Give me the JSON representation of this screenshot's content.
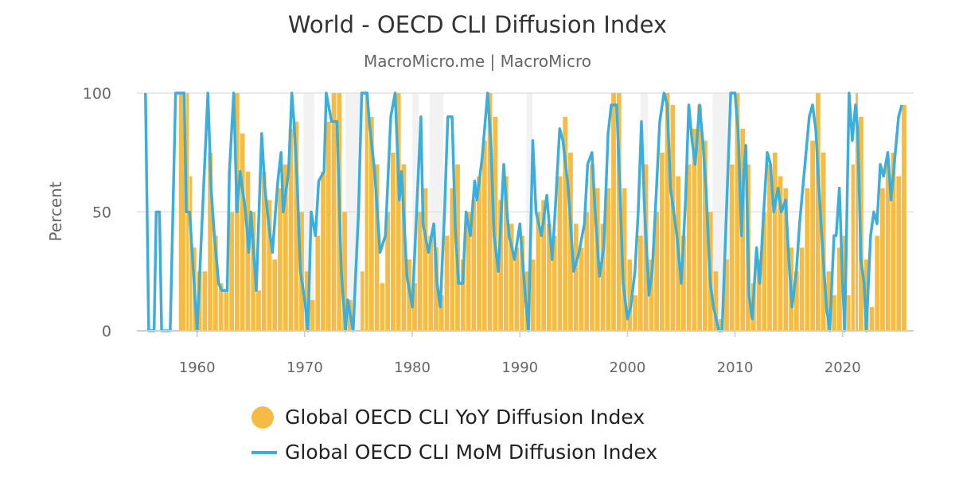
{
  "chart_data": {
    "type": "bar+line",
    "title": "World - OECD CLI Diffusion Index",
    "subtitle": "MacroMicro.me | MacroMicro",
    "ylabel": "Percent",
    "xlabel": "",
    "ylim": [
      0,
      100
    ],
    "xlim": [
      1954.4,
      2026.6
    ],
    "yticks": [
      "0",
      "50",
      "100"
    ],
    "xticks": [
      "1960",
      "1970",
      "1980",
      "1990",
      "2000",
      "2010",
      "2020"
    ],
    "grid": true,
    "legend_placement": "bottom",
    "colors": {
      "yoy": "#f6bb42",
      "mom": "#3caedb",
      "shade": "#f2f2f2"
    },
    "shaded_periods": [
      [
        1969.9,
        1970.9
      ],
      [
        1973.8,
        1975.2
      ],
      [
        1980.0,
        1980.6
      ],
      [
        1981.6,
        1982.9
      ],
      [
        1990.6,
        1991.2
      ],
      [
        2001.2,
        2001.9
      ],
      [
        2007.9,
        2009.5
      ]
    ],
    "series": [
      {
        "name": "Global OECD CLI YoY Diffusion Index",
        "type": "bar",
        "x": [
          1958.3,
          1959.0,
          1959.3,
          1959.6,
          1960.0,
          1960.5,
          1961.0,
          1961.5,
          1962.0,
          1962.5,
          1963.0,
          1963.5,
          1964.0,
          1964.5,
          1965.0,
          1965.5,
          1966.0,
          1966.5,
          1967.0,
          1967.5,
          1968.0,
          1968.5,
          1969.0,
          1969.5,
          1970.0,
          1970.5,
          1971.0,
          1971.5,
          1972.0,
          1972.5,
          1973.0,
          1973.5,
          1974.0,
          1974.5,
          1975.2,
          1975.6,
          1976.0,
          1976.5,
          1977.0,
          1977.5,
          1978.0,
          1978.5,
          1979.0,
          1979.5,
          1980.0,
          1980.5,
          1981.0,
          1981.5,
          1982.0,
          1982.5,
          1983.0,
          1983.5,
          1984.0,
          1984.5,
          1985.0,
          1985.5,
          1986.0,
          1986.5,
          1987.0,
          1987.5,
          1988.0,
          1988.5,
          1989.0,
          1989.5,
          1990.0,
          1990.5,
          1991.0,
          1991.5,
          1992.0,
          1992.5,
          1993.0,
          1993.5,
          1994.0,
          1994.5,
          1995.0,
          1995.5,
          1996.0,
          1996.5,
          1997.0,
          1997.5,
          1998.0,
          1998.5,
          1999.0,
          1999.5,
          2000.0,
          2000.5,
          2001.0,
          2001.5,
          2002.0,
          2002.5,
          2003.0,
          2003.5,
          2004.0,
          2004.5,
          2005.0,
          2005.5,
          2006.0,
          2006.5,
          2007.0,
          2007.5,
          2008.0,
          2008.5,
          2009.0,
          2009.5,
          2010.0,
          2010.5,
          2011.0,
          2011.5,
          2012.0,
          2012.5,
          2013.0,
          2013.5,
          2014.0,
          2014.5,
          2015.0,
          2015.5,
          2016.0,
          2016.5,
          2017.0,
          2017.5,
          2018.0,
          2018.5,
          2019.0,
          2019.5,
          2020.0,
          2020.4,
          2020.8,
          2021.2,
          2021.5,
          2022.0,
          2022.5,
          2023.0,
          2023.5,
          2024.0,
          2024.5,
          2025.0,
          2025.5
        ],
        "values": [
          100,
          100,
          65,
          35,
          25,
          25,
          75,
          40,
          20,
          17,
          50,
          100,
          83,
          67,
          50,
          17,
          67,
          55,
          30,
          60,
          70,
          85,
          88,
          50,
          25,
          13,
          40,
          67,
          88,
          100,
          100,
          50,
          13,
          0,
          25,
          100,
          90,
          70,
          20,
          50,
          75,
          100,
          70,
          30,
          20,
          50,
          60,
          40,
          35,
          15,
          40,
          60,
          70,
          30,
          50,
          55,
          65,
          80,
          100,
          90,
          55,
          65,
          45,
          35,
          40,
          25,
          30,
          50,
          55,
          45,
          40,
          65,
          90,
          75,
          45,
          35,
          50,
          70,
          60,
          45,
          60,
          100,
          100,
          60,
          30,
          15,
          40,
          70,
          30,
          50,
          75,
          100,
          95,
          65,
          40,
          70,
          85,
          95,
          80,
          50,
          25,
          5,
          30,
          70,
          100,
          85,
          70,
          20,
          30,
          50,
          70,
          75,
          65,
          60,
          35,
          25,
          35,
          60,
          80,
          100,
          75,
          25,
          15,
          35,
          40,
          15,
          70,
          100,
          90,
          30,
          10,
          40,
          60,
          70,
          75,
          65,
          95
        ]
      },
      {
        "name": "Global OECD CLI MoM Diffusion Index",
        "type": "line",
        "x": [
          1955.2,
          1955.5,
          1956.0,
          1956.2,
          1956.5,
          1956.7,
          1957.5,
          1958.0,
          1958.8,
          1959.0,
          1959.3,
          1960.0,
          1960.5,
          1961.0,
          1961.3,
          1961.6,
          1962.0,
          1962.3,
          1962.8,
          1963.0,
          1963.4,
          1963.7,
          1964.0,
          1964.5,
          1964.8,
          1965.0,
          1965.5,
          1966.0,
          1966.3,
          1966.7,
          1967.0,
          1967.5,
          1967.8,
          1968.0,
          1968.5,
          1968.8,
          1969.0,
          1969.3,
          1969.6,
          1970.0,
          1970.3,
          1970.6,
          1971.0,
          1971.3,
          1971.8,
          1972.0,
          1972.5,
          1973.0,
          1973.4,
          1973.8,
          1974.0,
          1974.5,
          1975.0,
          1975.3,
          1975.8,
          1976.0,
          1976.5,
          1977.0,
          1977.5,
          1978.0,
          1978.4,
          1978.8,
          1979.0,
          1979.5,
          1980.0,
          1980.4,
          1980.8,
          1981.0,
          1981.5,
          1982.0,
          1982.3,
          1982.6,
          1983.0,
          1983.3,
          1983.7,
          1984.0,
          1984.3,
          1984.7,
          1985.0,
          1985.4,
          1985.8,
          1986.0,
          1986.5,
          1987.0,
          1987.3,
          1987.6,
          1988.0,
          1988.5,
          1988.8,
          1989.0,
          1989.5,
          1990.0,
          1990.5,
          1990.8,
          1991.2,
          1991.5,
          1992.0,
          1992.5,
          1993.0,
          1993.3,
          1993.7,
          1994.0,
          1994.5,
          1995.0,
          1995.5,
          1996.0,
          1996.3,
          1996.7,
          1997.0,
          1997.4,
          1997.8,
          1998.2,
          1998.5,
          1999.0,
          1999.3,
          1999.6,
          2000.0,
          2000.3,
          2000.7,
          2001.0,
          2001.3,
          2001.6,
          2002.0,
          2002.3,
          2002.7,
          2003.0,
          2003.4,
          2003.7,
          2004.0,
          2004.3,
          2004.6,
          2005.0,
          2005.4,
          2005.7,
          2006.0,
          2006.3,
          2006.7,
          2007.0,
          2007.3,
          2007.7,
          2008.0,
          2008.5,
          2008.8,
          2009.2,
          2009.6,
          2010.0,
          2010.3,
          2010.6,
          2010.8,
          2011.0,
          2011.3,
          2011.6,
          2012.0,
          2012.3,
          2012.6,
          2013.0,
          2013.3,
          2013.6,
          2014.0,
          2014.3,
          2014.7,
          2015.0,
          2015.3,
          2015.7,
          2016.0,
          2016.5,
          2016.9,
          2017.2,
          2017.5,
          2017.8,
          2018.2,
          2018.5,
          2018.8,
          2019.2,
          2019.4,
          2019.7,
          2020.0,
          2020.2,
          2020.6,
          2020.9,
          2021.2,
          2021.4,
          2021.7,
          2022.0,
          2022.2,
          2022.6,
          2022.9,
          2023.2,
          2023.5,
          2023.8,
          2024.2,
          2024.5,
          2024.8,
          2025.2,
          2025.5
        ],
        "values": [
          100,
          0,
          0,
          50,
          50,
          0,
          0,
          100,
          100,
          50,
          50,
          0,
          50,
          100,
          60,
          40,
          20,
          17,
          17,
          67,
          100,
          50,
          67,
          50,
          33,
          50,
          17,
          83,
          60,
          43,
          33,
          63,
          75,
          50,
          67,
          100,
          88,
          63,
          25,
          13,
          0,
          50,
          40,
          63,
          67,
          100,
          88,
          88,
          25,
          0,
          13,
          0,
          50,
          100,
          100,
          88,
          67,
          33,
          40,
          90,
          100,
          55,
          67,
          23,
          10,
          50,
          90,
          45,
          33,
          45,
          20,
          10,
          50,
          90,
          90,
          43,
          20,
          20,
          50,
          40,
          63,
          55,
          73,
          100,
          80,
          40,
          25,
          70,
          50,
          40,
          30,
          45,
          15,
          0,
          80,
          50,
          40,
          57,
          30,
          52,
          85,
          80,
          60,
          25,
          33,
          45,
          70,
          75,
          50,
          23,
          35,
          83,
          95,
          95,
          60,
          20,
          5,
          10,
          25,
          50,
          88,
          50,
          15,
          25,
          60,
          88,
          100,
          95,
          60,
          50,
          40,
          20,
          55,
          95,
          80,
          70,
          95,
          80,
          60,
          20,
          10,
          0,
          0,
          50,
          100,
          100,
          83,
          40,
          65,
          78,
          15,
          5,
          35,
          20,
          45,
          75,
          70,
          50,
          60,
          50,
          55,
          30,
          10,
          25,
          45,
          70,
          90,
          95,
          85,
          60,
          30,
          10,
          0,
          40,
          40,
          60,
          20,
          0,
          100,
          80,
          95,
          85,
          30,
          20,
          0,
          40,
          50,
          45,
          70,
          65,
          75,
          55,
          70,
          90,
          95
        ]
      }
    ]
  }
}
